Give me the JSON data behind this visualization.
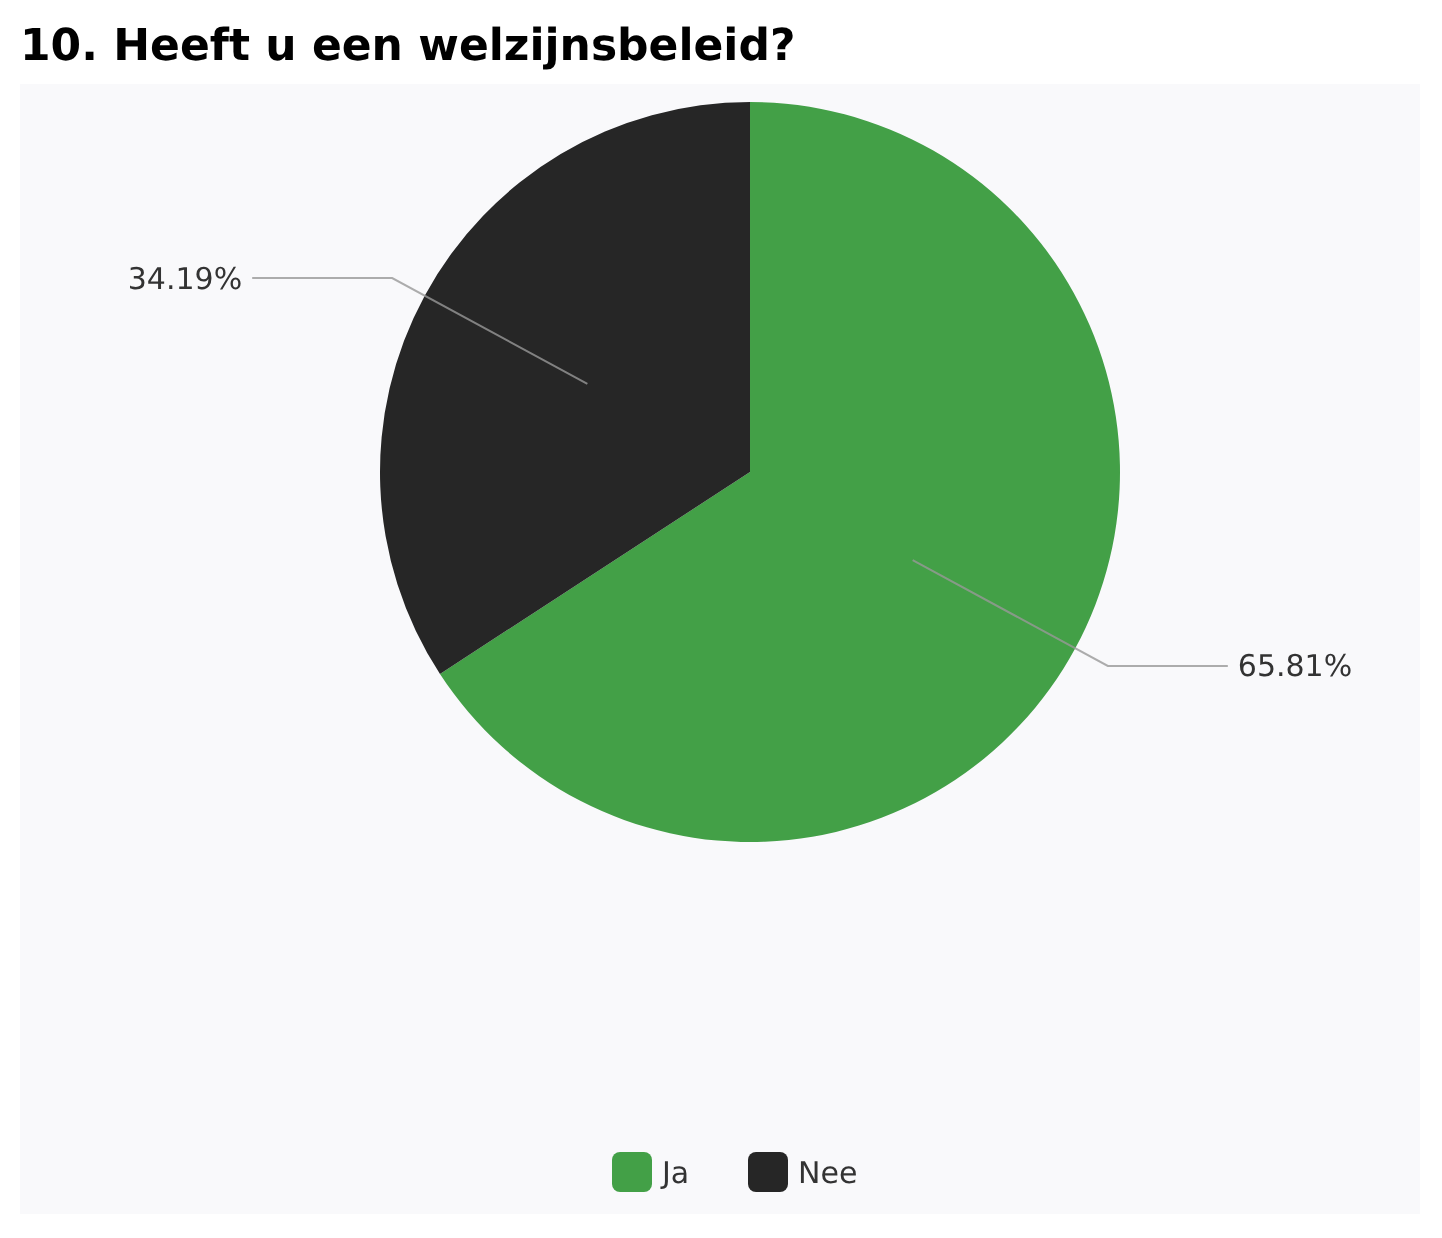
{
  "chart_data": {
    "type": "pie",
    "title": "10. Heeft u een welzijnsbeleid?",
    "categories": [
      "Ja",
      "Nee"
    ],
    "values": [
      65.81,
      34.19
    ],
    "colors": [
      "#43a047",
      "#262626"
    ],
    "value_labels": [
      "65.81%",
      "34.19%"
    ],
    "legend": "bottom"
  }
}
